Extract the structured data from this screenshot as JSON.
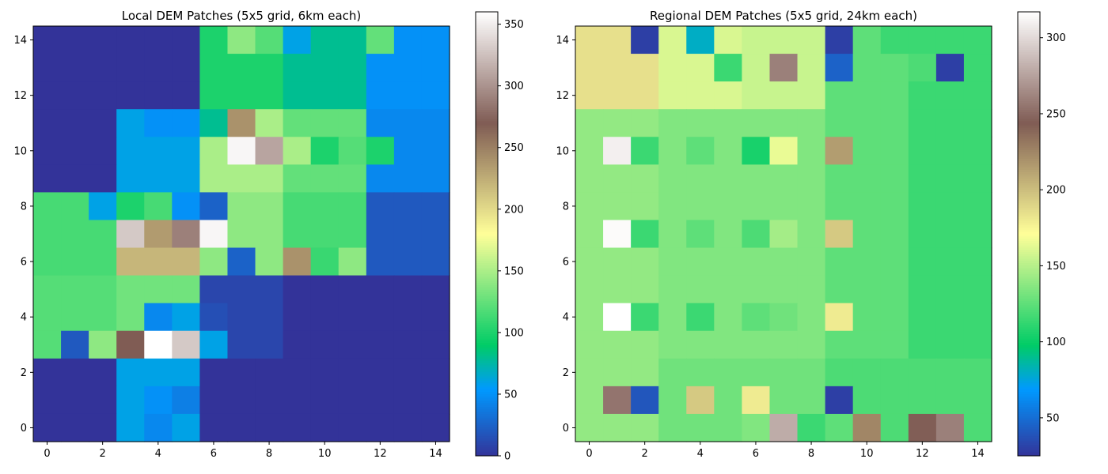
{
  "chart_data": [
    {
      "type": "heatmap",
      "title": "Local DEM Patches (5x5 grid, 6km each)",
      "colormap": "terrain",
      "x_ticks": [
        0,
        2,
        4,
        6,
        8,
        10,
        12,
        14
      ],
      "y_ticks": [
        0,
        2,
        4,
        6,
        8,
        10,
        12,
        14
      ],
      "xlim": [
        -0.5,
        14.5
      ],
      "ylim": [
        -0.5,
        14.5
      ],
      "vmin": 0,
      "vmax": 360,
      "colorbar_ticks": [
        0,
        50,
        100,
        150,
        200,
        250,
        300,
        350
      ],
      "grid_rows_top_to_bottom": [
        [
          0,
          0,
          0,
          0,
          0,
          0,
          100,
          140,
          120,
          60,
          80,
          80,
          125,
          50,
          50
        ],
        [
          0,
          0,
          0,
          0,
          0,
          0,
          100,
          100,
          100,
          80,
          80,
          80,
          50,
          50,
          50
        ],
        [
          0,
          0,
          0,
          0,
          0,
          0,
          100,
          100,
          100,
          80,
          80,
          80,
          50,
          50,
          50
        ],
        [
          0,
          0,
          0,
          60,
          50,
          50,
          80,
          240,
          150,
          125,
          125,
          125,
          45,
          45,
          45
        ],
        [
          0,
          0,
          0,
          60,
          60,
          60,
          150,
          355,
          310,
          150,
          100,
          120,
          100,
          45,
          45
        ],
        [
          0,
          0,
          0,
          60,
          60,
          60,
          150,
          150,
          150,
          125,
          125,
          125,
          45,
          45,
          45
        ],
        [
          115,
          115,
          60,
          100,
          115,
          50,
          25,
          140,
          140,
          115,
          115,
          115,
          20,
          20,
          20
        ],
        [
          115,
          115,
          115,
          330,
          235,
          290,
          355,
          140,
          140,
          115,
          115,
          115,
          20,
          20,
          20
        ],
        [
          115,
          115,
          115,
          220,
          220,
          220,
          140,
          25,
          140,
          240,
          110,
          140,
          20,
          20,
          20
        ],
        [
          120,
          120,
          120,
          130,
          130,
          130,
          10,
          10,
          10,
          0,
          0,
          0,
          0,
          0,
          0
        ],
        [
          120,
          120,
          120,
          130,
          45,
          60,
          15,
          10,
          10,
          0,
          0,
          0,
          0,
          0,
          0
        ],
        [
          120,
          20,
          140,
          270,
          360,
          330,
          60,
          10,
          10,
          0,
          0,
          0,
          0,
          0,
          0
        ],
        [
          0,
          0,
          0,
          60,
          60,
          60,
          0,
          0,
          0,
          0,
          0,
          0,
          0,
          0,
          0
        ],
        [
          0,
          0,
          0,
          60,
          50,
          40,
          0,
          0,
          0,
          0,
          0,
          0,
          0,
          0,
          0
        ],
        [
          0,
          0,
          0,
          60,
          45,
          60,
          0,
          0,
          0,
          0,
          0,
          0,
          0,
          0,
          0
        ]
      ]
    },
    {
      "type": "heatmap",
      "title": "Regional DEM Patches (5x5 grid, 24km each)",
      "colormap": "terrain",
      "x_ticks": [
        0,
        2,
        4,
        6,
        8,
        10,
        12,
        14
      ],
      "y_ticks": [
        0,
        2,
        4,
        6,
        8,
        10,
        12,
        14
      ],
      "xlim": [
        -0.5,
        14.5
      ],
      "ylim": [
        -0.5,
        14.5
      ],
      "vmin": 25,
      "vmax": 317,
      "colorbar_ticks": [
        50,
        100,
        150,
        200,
        250,
        300
      ],
      "grid_rows_top_to_bottom": [
        [
          185,
          185,
          30,
          160,
          80,
          160,
          155,
          155,
          155,
          30,
          125,
          115,
          115,
          115,
          115
        ],
        [
          185,
          185,
          185,
          160,
          160,
          115,
          155,
          260,
          155,
          45,
          125,
          125,
          120,
          30,
          115
        ],
        [
          185,
          185,
          185,
          160,
          160,
          160,
          155,
          155,
          155,
          125,
          125,
          125,
          115,
          115,
          115
        ],
        [
          140,
          140,
          140,
          135,
          135,
          135,
          135,
          135,
          135,
          125,
          125,
          125,
          115,
          115,
          115
        ],
        [
          140,
          310,
          115,
          135,
          125,
          135,
          105,
          165,
          135,
          215,
          125,
          125,
          115,
          115,
          115
        ],
        [
          140,
          140,
          140,
          135,
          135,
          135,
          135,
          135,
          135,
          125,
          125,
          125,
          115,
          115,
          115
        ],
        [
          140,
          140,
          140,
          135,
          135,
          135,
          135,
          135,
          135,
          125,
          125,
          125,
          115,
          115,
          115
        ],
        [
          140,
          315,
          115,
          135,
          125,
          135,
          120,
          145,
          135,
          195,
          125,
          125,
          115,
          115,
          115
        ],
        [
          140,
          140,
          140,
          135,
          135,
          135,
          135,
          135,
          135,
          125,
          125,
          125,
          115,
          115,
          115
        ],
        [
          140,
          140,
          140,
          135,
          135,
          135,
          135,
          135,
          135,
          125,
          125,
          125,
          115,
          115,
          115
        ],
        [
          140,
          317,
          115,
          135,
          115,
          135,
          125,
          130,
          135,
          180,
          125,
          125,
          115,
          115,
          115
        ],
        [
          140,
          140,
          140,
          135,
          135,
          135,
          135,
          135,
          135,
          125,
          125,
          125,
          115,
          115,
          115
        ],
        [
          140,
          140,
          140,
          130,
          130,
          130,
          130,
          130,
          130,
          120,
          120,
          120,
          120,
          120,
          120
        ],
        [
          140,
          255,
          40,
          130,
          195,
          130,
          180,
          130,
          130,
          30,
          120,
          120,
          120,
          120,
          120
        ],
        [
          140,
          140,
          140,
          130,
          130,
          130,
          135,
          280,
          115,
          125,
          225,
          120,
          245,
          260,
          120
        ]
      ]
    }
  ]
}
